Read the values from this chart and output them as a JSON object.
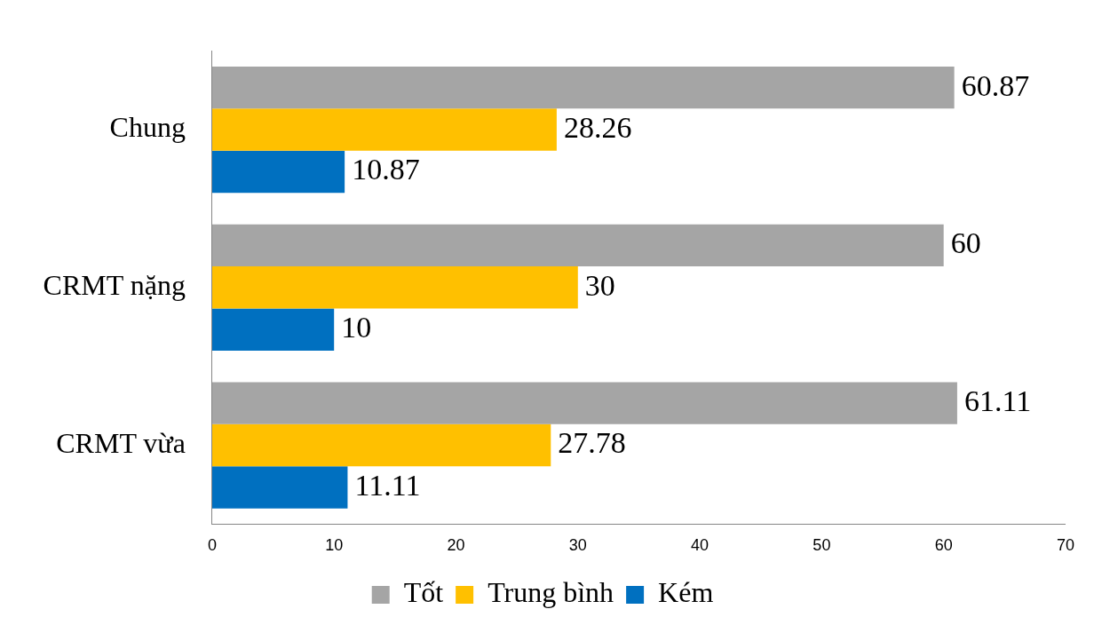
{
  "chart_data": {
    "type": "bar",
    "orientation": "horizontal",
    "categories": [
      "Chung",
      "CRMT nặng",
      "CRMT vừa"
    ],
    "series": [
      {
        "name": "Tốt",
        "color": "#a5a5a5",
        "values": [
          60.87,
          60,
          61.11
        ]
      },
      {
        "name": "Trung bình",
        "color": "#ffc000",
        "values": [
          28.26,
          30,
          27.78
        ]
      },
      {
        "name": "Kém",
        "color": "#0070c0",
        "values": [
          10.87,
          10,
          11.11
        ]
      }
    ],
    "xlim": [
      0,
      70
    ],
    "xticks": [
      0,
      10,
      20,
      30,
      40,
      50,
      60,
      70
    ],
    "grid": false,
    "legend": "bottom",
    "data_labels": true
  }
}
